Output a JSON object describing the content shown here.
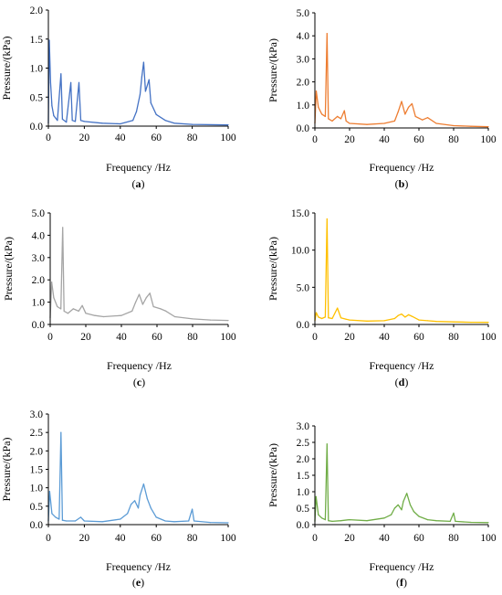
{
  "chart_data": [
    {
      "type": "line",
      "label": "(a)",
      "label_letter": "a",
      "color": "#4472C4",
      "xlabel": "Frequency /Hz",
      "ylabel": "Pressure/(kPa)",
      "xlim": [
        0,
        100
      ],
      "ylim": [
        0,
        2.0
      ],
      "xticks": [
        "0",
        "20",
        "40",
        "60",
        "80",
        "100"
      ],
      "yticks": [
        "0.0",
        "0.5",
        "1.0",
        "1.5",
        "2.0"
      ],
      "grid": false,
      "series": [
        {
          "values": [
            [
              0,
              0.05
            ],
            [
              0.5,
              1.48
            ],
            [
              1.2,
              0.75
            ],
            [
              2,
              0.35
            ],
            [
              3,
              0.18
            ],
            [
              5,
              0.1
            ],
            [
              7,
              0.9
            ],
            [
              7.8,
              0.12
            ],
            [
              10,
              0.07
            ],
            [
              12.5,
              0.75
            ],
            [
              13.3,
              0.1
            ],
            [
              15,
              0.08
            ],
            [
              17,
              0.75
            ],
            [
              18,
              0.1
            ],
            [
              20,
              0.08
            ],
            [
              30,
              0.05
            ],
            [
              40,
              0.04
            ],
            [
              47,
              0.1
            ],
            [
              49,
              0.25
            ],
            [
              51,
              0.55
            ],
            [
              52,
              0.85
            ],
            [
              53,
              1.1
            ],
            [
              54,
              0.6
            ],
            [
              56,
              0.8
            ],
            [
              57,
              0.4
            ],
            [
              60,
              0.2
            ],
            [
              65,
              0.1
            ],
            [
              70,
              0.05
            ],
            [
              80,
              0.03
            ],
            [
              100,
              0.02
            ]
          ]
        }
      ]
    },
    {
      "type": "line",
      "label": "(b)",
      "label_letter": "b",
      "color": "#ED7D31",
      "xlabel": "Frequency /Hz",
      "ylabel": "Pressure/(kPa)",
      "xlim": [
        0,
        100
      ],
      "ylim": [
        0,
        5.0
      ],
      "xticks": [
        "0",
        "20",
        "40",
        "60",
        "80",
        "100"
      ],
      "yticks": [
        "0.0",
        "1.0",
        "2.0",
        "3.0",
        "4.0",
        "5.0"
      ],
      "grid": false,
      "series": [
        {
          "values": [
            [
              0,
              0.2
            ],
            [
              0.8,
              1.6
            ],
            [
              2,
              0.9
            ],
            [
              4,
              0.6
            ],
            [
              6,
              0.5
            ],
            [
              7,
              4.1
            ],
            [
              7.8,
              0.4
            ],
            [
              10,
              0.3
            ],
            [
              13,
              0.5
            ],
            [
              15,
              0.4
            ],
            [
              17,
              0.75
            ],
            [
              18,
              0.3
            ],
            [
              20,
              0.2
            ],
            [
              30,
              0.15
            ],
            [
              40,
              0.2
            ],
            [
              46,
              0.3
            ],
            [
              48,
              0.7
            ],
            [
              50,
              1.15
            ],
            [
              52,
              0.6
            ],
            [
              54,
              0.9
            ],
            [
              56,
              1.05
            ],
            [
              58,
              0.5
            ],
            [
              62,
              0.35
            ],
            [
              65,
              0.45
            ],
            [
              70,
              0.2
            ],
            [
              80,
              0.1
            ],
            [
              90,
              0.07
            ],
            [
              100,
              0.05
            ]
          ]
        }
      ]
    },
    {
      "type": "line",
      "label": "(c)",
      "label_letter": "c",
      "color": "#A5A5A5",
      "xlabel": "Frequency /Hz",
      "ylabel": "Pressure/(kPa)",
      "xlim": [
        0,
        100
      ],
      "ylim": [
        0,
        5.0
      ],
      "xticks": [
        "0",
        "20",
        "40",
        "60",
        "80",
        "100"
      ],
      "yticks": [
        "0.0",
        "1.0",
        "2.0",
        "3.0",
        "4.0",
        "5.0"
      ],
      "grid": false,
      "series": [
        {
          "values": [
            [
              0,
              0.3
            ],
            [
              0.8,
              1.9
            ],
            [
              2,
              1.2
            ],
            [
              4,
              0.8
            ],
            [
              6,
              0.7
            ],
            [
              7,
              4.35
            ],
            [
              7.8,
              0.6
            ],
            [
              10,
              0.5
            ],
            [
              13,
              0.7
            ],
            [
              16,
              0.6
            ],
            [
              18,
              0.85
            ],
            [
              20,
              0.5
            ],
            [
              25,
              0.4
            ],
            [
              30,
              0.35
            ],
            [
              40,
              0.4
            ],
            [
              46,
              0.6
            ],
            [
              48,
              1.0
            ],
            [
              50,
              1.35
            ],
            [
              52,
              0.9
            ],
            [
              54,
              1.2
            ],
            [
              56,
              1.4
            ],
            [
              58,
              0.8
            ],
            [
              62,
              0.7
            ],
            [
              65,
              0.6
            ],
            [
              70,
              0.35
            ],
            [
              80,
              0.25
            ],
            [
              90,
              0.2
            ],
            [
              100,
              0.18
            ]
          ]
        }
      ]
    },
    {
      "type": "line",
      "label": "(d)",
      "label_letter": "d",
      "color": "#FFC000",
      "xlabel": "Frequency /Hz",
      "ylabel": "Pressure/(kPa)",
      "xlim": [
        0,
        100
      ],
      "ylim": [
        0,
        15.0
      ],
      "xticks": [
        "0",
        "20",
        "40",
        "60",
        "80",
        "100"
      ],
      "yticks": [
        "0.0",
        "5.0",
        "10.0",
        "15.0"
      ],
      "grid": false,
      "series": [
        {
          "values": [
            [
              0,
              0.5
            ],
            [
              0.8,
              1.6
            ],
            [
              2,
              1.0
            ],
            [
              4,
              0.8
            ],
            [
              6,
              1.0
            ],
            [
              7,
              14.2
            ],
            [
              7.8,
              0.9
            ],
            [
              10,
              0.8
            ],
            [
              13,
              2.2
            ],
            [
              15,
              0.9
            ],
            [
              18,
              0.7
            ],
            [
              20,
              0.6
            ],
            [
              30,
              0.45
            ],
            [
              40,
              0.5
            ],
            [
              46,
              0.8
            ],
            [
              48,
              1.2
            ],
            [
              50,
              1.4
            ],
            [
              52,
              1.0
            ],
            [
              54,
              1.3
            ],
            [
              56,
              1.1
            ],
            [
              60,
              0.6
            ],
            [
              65,
              0.5
            ],
            [
              70,
              0.4
            ],
            [
              80,
              0.35
            ],
            [
              90,
              0.3
            ],
            [
              100,
              0.28
            ]
          ]
        }
      ]
    },
    {
      "type": "line",
      "label": "(e)",
      "label_letter": "e",
      "color": "#5B9BD5",
      "xlabel": "Frequency /Hz",
      "ylabel": "Pressure/(kPa)",
      "xlim": [
        0,
        100
      ],
      "ylim": [
        0,
        3.0
      ],
      "xticks": [
        "0",
        "20",
        "40",
        "60",
        "80",
        "100"
      ],
      "yticks": [
        "0.0",
        "0.5",
        "1.0",
        "1.5",
        "2.0",
        "2.5",
        "3.0"
      ],
      "grid": false,
      "series": [
        {
          "values": [
            [
              0,
              0.1
            ],
            [
              0.7,
              0.9
            ],
            [
              2,
              0.3
            ],
            [
              4,
              0.2
            ],
            [
              6,
              0.15
            ],
            [
              7,
              2.5
            ],
            [
              7.8,
              0.12
            ],
            [
              10,
              0.1
            ],
            [
              15,
              0.1
            ],
            [
              18,
              0.2
            ],
            [
              20,
              0.1
            ],
            [
              30,
              0.08
            ],
            [
              40,
              0.15
            ],
            [
              44,
              0.3
            ],
            [
              46,
              0.55
            ],
            [
              48,
              0.65
            ],
            [
              50,
              0.45
            ],
            [
              51,
              0.8
            ],
            [
              53,
              1.1
            ],
            [
              55,
              0.7
            ],
            [
              57,
              0.45
            ],
            [
              60,
              0.2
            ],
            [
              65,
              0.1
            ],
            [
              70,
              0.08
            ],
            [
              78,
              0.1
            ],
            [
              80,
              0.42
            ],
            [
              81,
              0.1
            ],
            [
              90,
              0.06
            ],
            [
              100,
              0.05
            ]
          ]
        }
      ]
    },
    {
      "type": "line",
      "label": "(f)",
      "label_letter": "f",
      "color": "#70AD47",
      "xlabel": "Frequency /Hz",
      "ylabel": "Pressure/(kPa)",
      "xlim": [
        0,
        100
      ],
      "ylim": [
        0,
        3.0
      ],
      "xticks": [
        "0",
        "20",
        "40",
        "60",
        "80",
        "100"
      ],
      "yticks": [
        "0.0",
        "0.5",
        "1.0",
        "1.5",
        "2.0",
        "2.5",
        "3.0"
      ],
      "grid": false,
      "series": [
        {
          "values": [
            [
              0,
              0.1
            ],
            [
              0.7,
              0.85
            ],
            [
              2,
              0.3
            ],
            [
              4,
              0.2
            ],
            [
              6,
              0.15
            ],
            [
              7,
              2.45
            ],
            [
              7.8,
              0.12
            ],
            [
              10,
              0.1
            ],
            [
              15,
              0.12
            ],
            [
              20,
              0.15
            ],
            [
              30,
              0.12
            ],
            [
              40,
              0.2
            ],
            [
              44,
              0.3
            ],
            [
              46,
              0.5
            ],
            [
              48,
              0.6
            ],
            [
              50,
              0.45
            ],
            [
              51,
              0.7
            ],
            [
              53,
              0.95
            ],
            [
              55,
              0.6
            ],
            [
              57,
              0.4
            ],
            [
              60,
              0.25
            ],
            [
              65,
              0.15
            ],
            [
              70,
              0.12
            ],
            [
              78,
              0.1
            ],
            [
              80,
              0.35
            ],
            [
              81,
              0.1
            ],
            [
              90,
              0.07
            ],
            [
              100,
              0.06
            ]
          ]
        }
      ]
    }
  ]
}
